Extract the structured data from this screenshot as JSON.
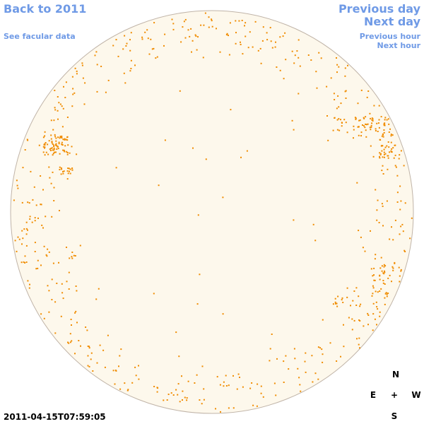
{
  "nav": {
    "back_label": "Back to 2011",
    "facular_label": "See facular data",
    "prev_day_label": "Previous day",
    "next_day_label": "Next day",
    "prev_hour_label": "Previous hour",
    "next_hour_label": "Next hour"
  },
  "compass": {
    "north": "N",
    "south": "S",
    "east": "E",
    "west": "W",
    "center": "+"
  },
  "timestamp": "2011-04-15T07:59:05",
  "colors": {
    "link": "#6f9ae6",
    "disk_fill": "#fdf8ec",
    "disk_stroke": "#c0b4a8",
    "facula": "#f08c00"
  }
}
